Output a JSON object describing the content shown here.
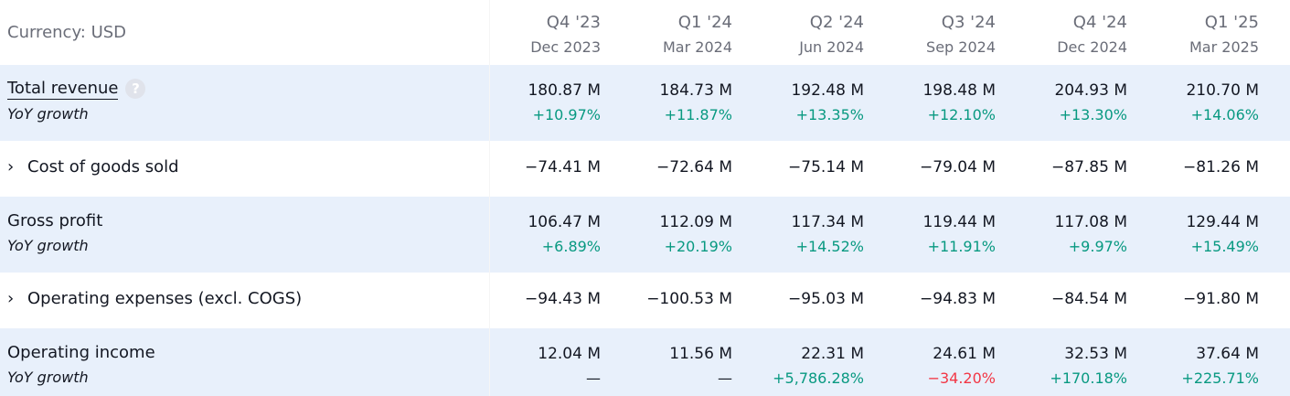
{
  "currency_label": "Currency: USD",
  "periods": [
    {
      "quarter": "Q4 '23",
      "date": "Dec 2023"
    },
    {
      "quarter": "Q1 '24",
      "date": "Mar 2024"
    },
    {
      "quarter": "Q2 '24",
      "date": "Jun 2024"
    },
    {
      "quarter": "Q3 '24",
      "date": "Sep 2024"
    },
    {
      "quarter": "Q4 '24",
      "date": "Dec 2024"
    },
    {
      "quarter": "Q1 '25",
      "date": "Mar 2025"
    }
  ],
  "rows": {
    "total_revenue": {
      "label": "Total revenue",
      "help_icon": "?",
      "growth_label": "YoY growth",
      "values": [
        "180.87 M",
        "184.73 M",
        "192.48 M",
        "198.48 M",
        "204.93 M",
        "210.70 M"
      ],
      "growth": [
        "+10.97%",
        "+11.87%",
        "+13.35%",
        "+12.10%",
        "+13.30%",
        "+14.06%"
      ]
    },
    "cogs": {
      "label": "Cost of goods sold",
      "chevron": "›",
      "values": [
        "−74.41 M",
        "−72.64 M",
        "−75.14 M",
        "−79.04 M",
        "−87.85 M",
        "−81.26 M"
      ]
    },
    "gross_profit": {
      "label": "Gross profit",
      "growth_label": "YoY growth",
      "values": [
        "106.47 M",
        "112.09 M",
        "117.34 M",
        "119.44 M",
        "117.08 M",
        "129.44 M"
      ],
      "growth": [
        "+6.89%",
        "+20.19%",
        "+14.52%",
        "+11.91%",
        "+9.97%",
        "+15.49%"
      ]
    },
    "opex": {
      "label": "Operating expenses (excl. COGS)",
      "chevron": "›",
      "values": [
        "−94.43 M",
        "−100.53 M",
        "−95.03 M",
        "−94.83 M",
        "−84.54 M",
        "−91.80 M"
      ]
    },
    "operating_income": {
      "label": "Operating income",
      "growth_label": "YoY growth",
      "values": [
        "12.04 M",
        "11.56 M",
        "22.31 M",
        "24.61 M",
        "32.53 M",
        "37.64 M"
      ],
      "growth": [
        "—",
        "—",
        "+5,786.28%",
        "−34.20%",
        "+170.18%",
        "+225.71%"
      ]
    }
  },
  "colors": {
    "positive": "#089981",
    "negative": "#f23645",
    "row_highlight": "#e8f0fb"
  }
}
